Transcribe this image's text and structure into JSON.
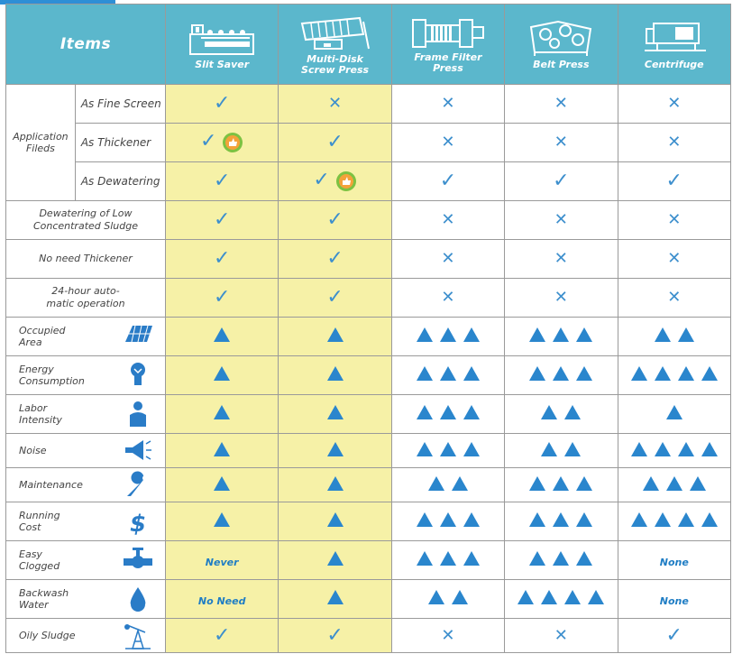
{
  "header": {
    "items_label": "Items",
    "machines": [
      "Slit Saver",
      "Multi-Disk\nScrew Press",
      "Frame Filter\nPress",
      "Belt Press",
      "Centrifuge"
    ]
  },
  "application_group_label": "Application\nFileds",
  "symbols": {
    "check": "✓",
    "cross": "✕"
  },
  "rows": [
    {
      "label": "As Fine Screen",
      "kind": "sub",
      "cells": [
        "check",
        "cross",
        "cross",
        "cross",
        "cross"
      ]
    },
    {
      "label": "As Thickener",
      "kind": "sub",
      "cells": [
        "check-badge",
        "check",
        "cross",
        "cross",
        "cross"
      ]
    },
    {
      "label": "As Dewatering",
      "kind": "sub",
      "cells": [
        "check",
        "check-badge",
        "check",
        "check",
        "check"
      ]
    },
    {
      "label": "Dewatering of Low\nConcentrated Sludge",
      "kind": "full",
      "cells": [
        "check",
        "check",
        "cross",
        "cross",
        "cross"
      ]
    },
    {
      "label": "No need Thickener",
      "kind": "full",
      "cells": [
        "check",
        "check",
        "cross",
        "cross",
        "cross"
      ]
    },
    {
      "label": "24-hour auto-\nmatic operation",
      "kind": "full",
      "cells": [
        "check",
        "check",
        "cross",
        "cross",
        "cross"
      ]
    },
    {
      "label": "Occupied\nArea",
      "kind": "icon",
      "icon": "solar-panel-icon",
      "cells": [
        1,
        1,
        3,
        3,
        2
      ]
    },
    {
      "label": "Energy\nConsumption",
      "kind": "icon",
      "icon": "light-bulb-icon",
      "cells": [
        1,
        1,
        3,
        3,
        4
      ]
    },
    {
      "label": "Labor\nIntensity",
      "kind": "icon",
      "icon": "worker-icon",
      "cells": [
        1,
        1,
        3,
        2,
        1
      ]
    },
    {
      "label": "Noise",
      "kind": "icon",
      "icon": "megaphone-icon",
      "cells": [
        1,
        1,
        3,
        2,
        4
      ]
    },
    {
      "label": "Maintenance",
      "kind": "icon",
      "icon": "wrench-icon",
      "cells": [
        1,
        1,
        2,
        3,
        3
      ]
    },
    {
      "label": "Running\nCost",
      "kind": "icon",
      "icon": "dollar-icon",
      "cells": [
        1,
        1,
        3,
        3,
        4
      ]
    },
    {
      "label": "Easy\nClogged",
      "kind": "icon",
      "icon": "valve-pipe-icon",
      "cells": [
        "Never",
        1,
        3,
        3,
        "None"
      ]
    },
    {
      "label": "Backwash\nWater",
      "kind": "icon",
      "icon": "water-drop-icon",
      "cells": [
        "No Need",
        1,
        2,
        4,
        "None"
      ]
    },
    {
      "label": "Oily Sludge",
      "kind": "icon",
      "icon": "oil-pump-icon",
      "cells": [
        "check",
        "check",
        "cross",
        "cross",
        "check"
      ]
    }
  ],
  "colors": {
    "header": "#5bb7cc",
    "highlight": "#f6f1a7",
    "mark": "#3d8fcd",
    "badge": "#7cc242"
  }
}
